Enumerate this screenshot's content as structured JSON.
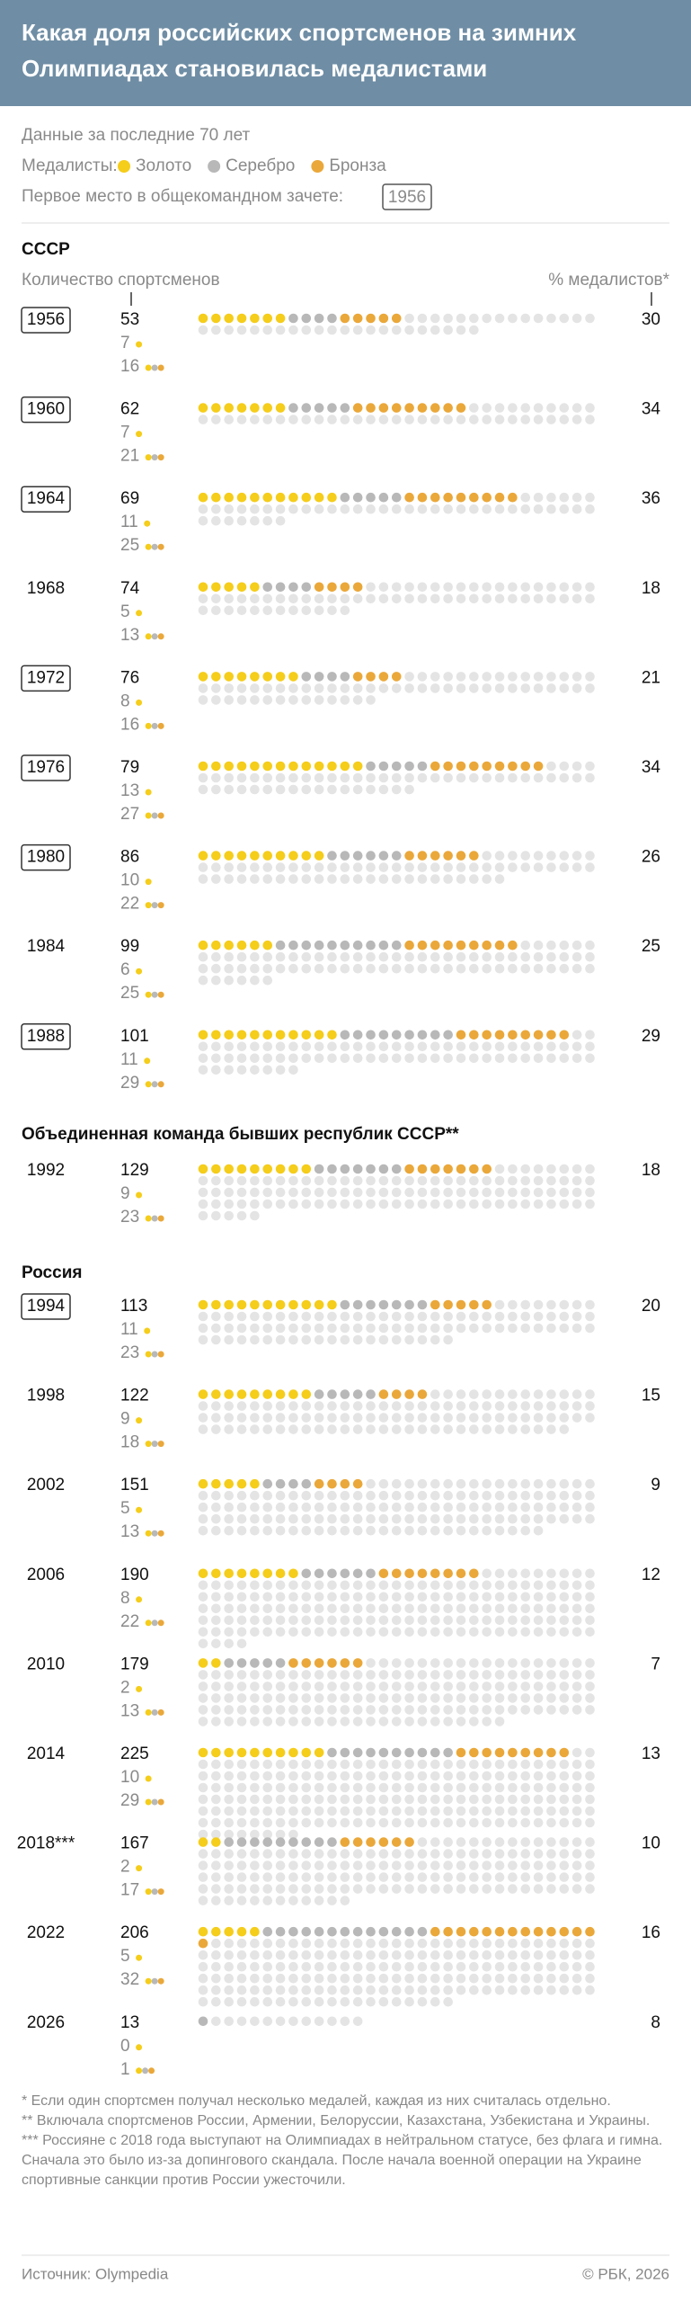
{
  "header": {
    "title_lines": [
      "Какая доля российских спортсменов на зимних",
      "Олимпиадах становилась медалистами"
    ],
    "subtitle": "Данные за последние 70 лет"
  },
  "legend": {
    "label": "Медалисты:",
    "items": [
      {
        "name": "Золото",
        "color": "#f5cd1b"
      },
      {
        "name": "Серебро",
        "color": "#b8b8b8"
      },
      {
        "name": "Бронза",
        "color": "#eaa83a"
      }
    ],
    "first_place_label": "Первое место в общекомандном зачете:",
    "first_place_example": "1956",
    "empty_color": "#e4e4e4"
  },
  "columns": {
    "left": "Количество спортсменов",
    "right": "% медалистов*"
  },
  "sections": [
    {
      "title": "СССР",
      "rows": [
        {
          "year": "1956",
          "first_place": true,
          "athletes": 53,
          "gold": 7,
          "silver": 4,
          "bronze": 5,
          "medalists": 16,
          "percent": 30
        },
        {
          "year": "1960",
          "first_place": true,
          "athletes": 62,
          "gold": 7,
          "silver": 5,
          "bronze": 9,
          "medalists": 21,
          "percent": 34
        },
        {
          "year": "1964",
          "first_place": true,
          "athletes": 69,
          "gold": 11,
          "silver": 5,
          "bronze": 9,
          "medalists": 25,
          "percent": 36
        },
        {
          "year": "1968",
          "first_place": false,
          "athletes": 74,
          "gold": 5,
          "silver": 4,
          "bronze": 4,
          "medalists": 13,
          "percent": 18
        },
        {
          "year": "1972",
          "first_place": true,
          "athletes": 76,
          "gold": 8,
          "silver": 4,
          "bronze": 4,
          "medalists": 16,
          "percent": 21
        },
        {
          "year": "1976",
          "first_place": true,
          "athletes": 79,
          "gold": 13,
          "silver": 5,
          "bronze": 9,
          "medalists": 27,
          "percent": 34
        },
        {
          "year": "1980",
          "first_place": true,
          "athletes": 86,
          "gold": 10,
          "silver": 6,
          "bronze": 6,
          "medalists": 22,
          "percent": 26
        },
        {
          "year": "1984",
          "first_place": false,
          "athletes": 99,
          "gold": 6,
          "silver": 10,
          "bronze": 9,
          "medalists": 25,
          "percent": 25
        },
        {
          "year": "1988",
          "first_place": true,
          "athletes": 101,
          "gold": 11,
          "silver": 9,
          "bronze": 9,
          "medalists": 29,
          "percent": 29
        }
      ]
    },
    {
      "title": "Объединенная команда бывших республик СССР**",
      "rows": [
        {
          "year": "1992",
          "first_place": false,
          "athletes": 129,
          "gold": 9,
          "silver": 7,
          "bronze": 7,
          "medalists": 23,
          "percent": 18
        }
      ]
    },
    {
      "title": "Россия",
      "rows": [
        {
          "year": "1994",
          "first_place": true,
          "athletes": 113,
          "gold": 11,
          "silver": 7,
          "bronze": 5,
          "medalists": 23,
          "percent": 20
        },
        {
          "year": "1998",
          "first_place": false,
          "athletes": 122,
          "gold": 9,
          "silver": 5,
          "bronze": 4,
          "medalists": 18,
          "percent": 15
        },
        {
          "year": "2002",
          "first_place": false,
          "athletes": 151,
          "gold": 5,
          "silver": 4,
          "bronze": 4,
          "medalists": 13,
          "percent": 9
        },
        {
          "year": "2006",
          "first_place": false,
          "athletes": 190,
          "gold": 8,
          "silver": 6,
          "bronze": 8,
          "medalists": 22,
          "percent": 12
        },
        {
          "year": "2010",
          "first_place": false,
          "athletes": 179,
          "gold": 2,
          "silver": 5,
          "bronze": 6,
          "medalists": 13,
          "percent": 7
        },
        {
          "year": "2014",
          "first_place": false,
          "athletes": 225,
          "gold": 10,
          "silver": 10,
          "bronze": 9,
          "medalists": 29,
          "percent": 13
        },
        {
          "year": "2018***",
          "first_place": false,
          "athletes": 167,
          "gold": 2,
          "silver": 9,
          "bronze": 6,
          "medalists": 17,
          "percent": 10
        },
        {
          "year": "2022",
          "first_place": false,
          "athletes": 206,
          "gold": 5,
          "silver": 13,
          "bronze": 14,
          "medalists": 32,
          "percent": 16
        },
        {
          "year": "2026",
          "first_place": false,
          "athletes": 13,
          "gold": 0,
          "silver": 1,
          "bronze": 0,
          "medalists": 1,
          "percent": 8
        }
      ]
    }
  ],
  "footnotes": [
    "* Если один спортсмен получал несколько медалей, каждая из них считалась отдельно.",
    "** Включала спортсменов России, Армении, Белоруссии, Казахстана, Узбекистана и Украины.",
    "*** Россияне с 2018 года выступают на Олимпиадах в нейтральном статусе, без флага и гимна. Сначала это было из-за допингового скандала. После начала военной операции на Украине спортивные санкции против России ужесточили."
  ],
  "footer": {
    "source": "Источник: Olympedia",
    "copyright": "© РБК, 2026"
  }
}
